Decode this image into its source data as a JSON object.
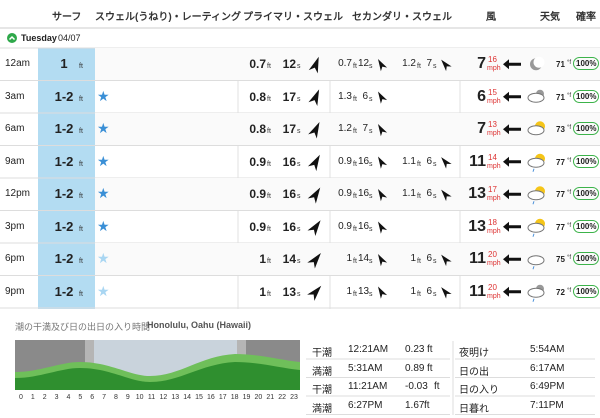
{
  "header": {
    "columns": [
      "サーフ",
      "スウェル(うねり)・レーティング",
      "プライマリ・スウェル",
      "セカンダリ・スウェル",
      "風",
      "天気",
      "確率"
    ]
  },
  "day": {
    "name": "Tuesday",
    "date": "04/07"
  },
  "units": {
    "ft": "ft",
    "s": "s",
    "mph": "mph",
    "temp": "°f"
  },
  "rows": [
    {
      "time": "12am",
      "surf": "1",
      "stars": 0,
      "primary": {
        "height": "0.7",
        "period": "12"
      },
      "secondary": [
        {
          "height": "0.7",
          "period": "12"
        },
        {
          "height": "1.2",
          "period": "7"
        }
      ],
      "wind": {
        "speed": "7",
        "gust": "16"
      },
      "temp": "71",
      "prob": "100%"
    },
    {
      "time": "3am",
      "surf": "1-2",
      "stars": 1,
      "primary": {
        "height": "0.8",
        "period": "17"
      },
      "secondary": [
        {
          "height": "1.3",
          "period": "6"
        }
      ],
      "wind": {
        "speed": "6",
        "gust": "15"
      },
      "temp": "71",
      "prob": "100%"
    },
    {
      "time": "6am",
      "surf": "1-2",
      "stars": 1,
      "primary": {
        "height": "0.8",
        "period": "17"
      },
      "secondary": [
        {
          "height": "1.2",
          "period": "7"
        }
      ],
      "wind": {
        "speed": "7",
        "gust": "13"
      },
      "temp": "73",
      "prob": "100%"
    },
    {
      "time": "9am",
      "surf": "1-2",
      "stars": 1,
      "primary": {
        "height": "0.9",
        "period": "16"
      },
      "secondary": [
        {
          "height": "0.9",
          "period": "16"
        },
        {
          "height": "1.1",
          "period": "6"
        }
      ],
      "wind": {
        "speed": "11",
        "gust": "14"
      },
      "temp": "77",
      "prob": "100%"
    },
    {
      "time": "12pm",
      "surf": "1-2",
      "stars": 1,
      "primary": {
        "height": "0.9",
        "period": "16"
      },
      "secondary": [
        {
          "height": "0.9",
          "period": "16"
        },
        {
          "height": "1.1",
          "period": "6"
        }
      ],
      "wind": {
        "speed": "13",
        "gust": "17"
      },
      "temp": "77",
      "prob": "100%"
    },
    {
      "time": "3pm",
      "surf": "1-2",
      "stars": 1,
      "primary": {
        "height": "0.9",
        "period": "16"
      },
      "secondary": [
        {
          "height": "0.9",
          "period": "16"
        }
      ],
      "wind": {
        "speed": "13",
        "gust": "18"
      },
      "temp": "77",
      "prob": "100%"
    },
    {
      "time": "6pm",
      "surf": "1-2",
      "stars": 1,
      "primary": {
        "height": "1",
        "period": "14"
      },
      "secondary": [
        {
          "height": "1",
          "period": "14"
        },
        {
          "height": "1",
          "period": "6"
        }
      ],
      "wind": {
        "speed": "11",
        "gust": "20"
      },
      "temp": "75",
      "prob": "100%"
    },
    {
      "time": "9pm",
      "surf": "1-2",
      "stars": 1,
      "primary": {
        "height": "1",
        "period": "13"
      },
      "secondary": [
        {
          "height": "1",
          "period": "13"
        },
        {
          "height": "1",
          "period": "6"
        }
      ],
      "wind": {
        "speed": "11",
        "gust": "20"
      },
      "temp": "72",
      "prob": "100%"
    }
  ],
  "tide": {
    "title": "潮の干満及び日の出日の入り時間",
    "location": "Honolulu, Oahu (Hawaii)",
    "hours": [
      0,
      1,
      2,
      3,
      4,
      5,
      6,
      7,
      8,
      9,
      10,
      11,
      12,
      13,
      14,
      15,
      16,
      17,
      18,
      19,
      20,
      21,
      22,
      23
    ],
    "events": [
      {
        "type": "干潮",
        "time": "12:21AM",
        "height": "0.23"
      },
      {
        "type": "満潮",
        "time": "5:31AM",
        "height": "0.89"
      },
      {
        "type": "干潮",
        "time": "11:21AM",
        "height": "-0.03"
      },
      {
        "type": "満潮",
        "time": "6:27PM",
        "height": "1.67"
      }
    ],
    "sun": [
      {
        "label": "夜明け",
        "time": "5:54AM"
      },
      {
        "label": "日の出",
        "time": "6:17AM"
      },
      {
        "label": "日の入り",
        "time": "6:49PM"
      },
      {
        "label": "日暮れ",
        "time": "7:11PM"
      }
    ]
  }
}
